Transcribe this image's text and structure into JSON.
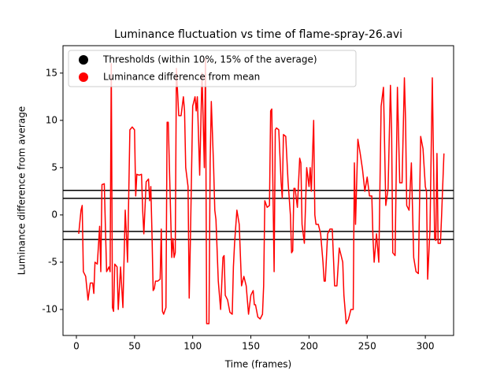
{
  "chart_data": {
    "type": "line",
    "title": "Luminance fluctuation vs time of flame-spray-26.avi",
    "x_label": "Time (frames)",
    "y_label": "Luminance difference from average",
    "xlim": [
      -11.5,
      324.3
    ],
    "ylim": [
      -12.75,
      17.9
    ],
    "xticks": [
      0,
      50,
      100,
      150,
      200,
      250,
      300
    ],
    "yticks": [
      -10,
      -5,
      0,
      5,
      10,
      15
    ],
    "legend": "upper left",
    "hlines": {
      "name": "Thresholds (within 10%, 15% of the average)",
      "color": "#000000",
      "values": [
        2.6,
        1.75,
        -1.75,
        -2.6
      ]
    },
    "x": [
      2,
      4,
      5,
      6,
      8,
      10,
      12,
      14,
      15,
      16,
      18,
      20,
      21,
      22,
      24,
      25,
      26,
      28,
      29,
      30,
      31,
      32,
      33,
      35,
      36,
      38,
      40,
      42,
      43,
      44,
      46,
      48,
      50,
      51,
      52,
      54,
      56,
      57,
      58,
      60,
      62,
      63,
      64,
      65,
      66,
      67,
      68,
      70,
      72,
      73,
      74,
      75,
      77,
      78,
      79,
      80,
      82,
      83,
      84,
      85,
      86,
      88,
      90,
      92,
      93,
      94,
      96,
      97,
      98,
      100,
      102,
      103,
      104,
      106,
      108,
      110,
      111,
      112,
      114,
      115,
      116,
      118,
      119,
      120,
      122,
      124,
      126,
      127,
      128,
      130,
      132,
      134,
      135,
      136,
      138,
      140,
      142,
      144,
      146,
      148,
      150,
      152,
      153,
      154,
      156,
      158,
      160,
      161,
      162,
      164,
      166,
      167,
      168,
      170,
      171,
      172,
      174,
      176,
      177,
      178,
      180,
      182,
      184,
      185,
      186,
      187,
      188,
      190,
      192,
      193,
      194,
      195,
      196,
      198,
      200,
      201,
      202,
      204,
      205,
      206,
      208,
      210,
      212,
      213,
      214,
      216,
      218,
      220,
      222,
      224,
      226,
      228,
      229,
      230,
      232,
      234,
      236,
      238,
      239,
      240,
      242,
      244,
      246,
      248,
      250,
      252,
      254,
      255,
      256,
      258,
      260,
      262,
      264,
      266,
      268,
      270,
      271,
      272,
      274,
      276,
      278,
      280,
      282,
      283,
      284,
      286,
      288,
      290,
      292,
      294,
      296,
      298,
      300,
      301,
      302,
      304,
      306,
      308,
      309,
      310,
      311,
      313,
      314,
      316
    ],
    "series": [
      {
        "name": "Luminance difference from mean",
        "color": "#ff0000",
        "values": [
          -2,
          0.5,
          1,
          -6,
          -6.5,
          -9,
          -7.2,
          -7.2,
          -8.3,
          -5,
          -5.2,
          -1.2,
          -6,
          3.2,
          3.3,
          -1.5,
          -6,
          -5.5,
          -6,
          16,
          -9.8,
          -10.2,
          -5.2,
          -5.5,
          -10,
          -5.5,
          -9.8,
          0.5,
          -2,
          -5,
          9,
          9.3,
          9,
          2,
          4.3,
          4.2,
          4.3,
          0.5,
          -2,
          3.5,
          3.8,
          1.5,
          3,
          -2,
          -8,
          -7.8,
          -7,
          -7,
          -6.8,
          -1.5,
          -10.2,
          -10.5,
          -9.8,
          9.8,
          9.8,
          5,
          -4.5,
          -2.5,
          -4.5,
          -4,
          15.5,
          10.5,
          10.5,
          12.5,
          11,
          5,
          3,
          -8.8,
          -2.8,
          11.5,
          12.5,
          11,
          12.5,
          4.2,
          15,
          5,
          16.5,
          -11.5,
          -11.5,
          5.5,
          12,
          5,
          0.5,
          -0.5,
          -7,
          -10,
          -4.5,
          -4.3,
          -8.5,
          -9,
          -10.3,
          -10.5,
          -5.5,
          -3,
          0.5,
          -1,
          -7.5,
          -6.5,
          -7.5,
          -10.5,
          -8.5,
          -8,
          -9.5,
          -9.5,
          -10.8,
          -11,
          -10.5,
          -7.5,
          1.5,
          0.8,
          1,
          11,
          11.2,
          -6,
          9,
          9.2,
          9,
          3.5,
          1.8,
          8.5,
          8.3,
          3.5,
          0,
          -4,
          -3.8,
          2.8,
          2.8,
          0.8,
          6,
          5.5,
          -1,
          -2,
          -3,
          5,
          3,
          5,
          2.5,
          10,
          0,
          -1,
          -1,
          -2,
          -5,
          -7,
          -7,
          -2,
          -1.5,
          -1.5,
          -7.5,
          -7.5,
          -3.5,
          -4.5,
          -5,
          -8.5,
          -11.5,
          -11,
          -10,
          -10,
          5.5,
          -1,
          8,
          6.5,
          4.8,
          2.5,
          4,
          2,
          2,
          -2.5,
          -5,
          -2,
          -5,
          11.5,
          13.5,
          1,
          2.8,
          13.7,
          9,
          -4,
          -4.3,
          13.5,
          3.4,
          3.4,
          14.5,
          10,
          1,
          0.5,
          5.5,
          -4.5,
          -6,
          -6.2,
          8.3,
          7,
          3,
          2.5,
          -6.8,
          -1.5,
          14.5,
          -2.5,
          -2.7,
          6.5,
          -3,
          -3,
          0,
          6.5
        ]
      }
    ]
  }
}
